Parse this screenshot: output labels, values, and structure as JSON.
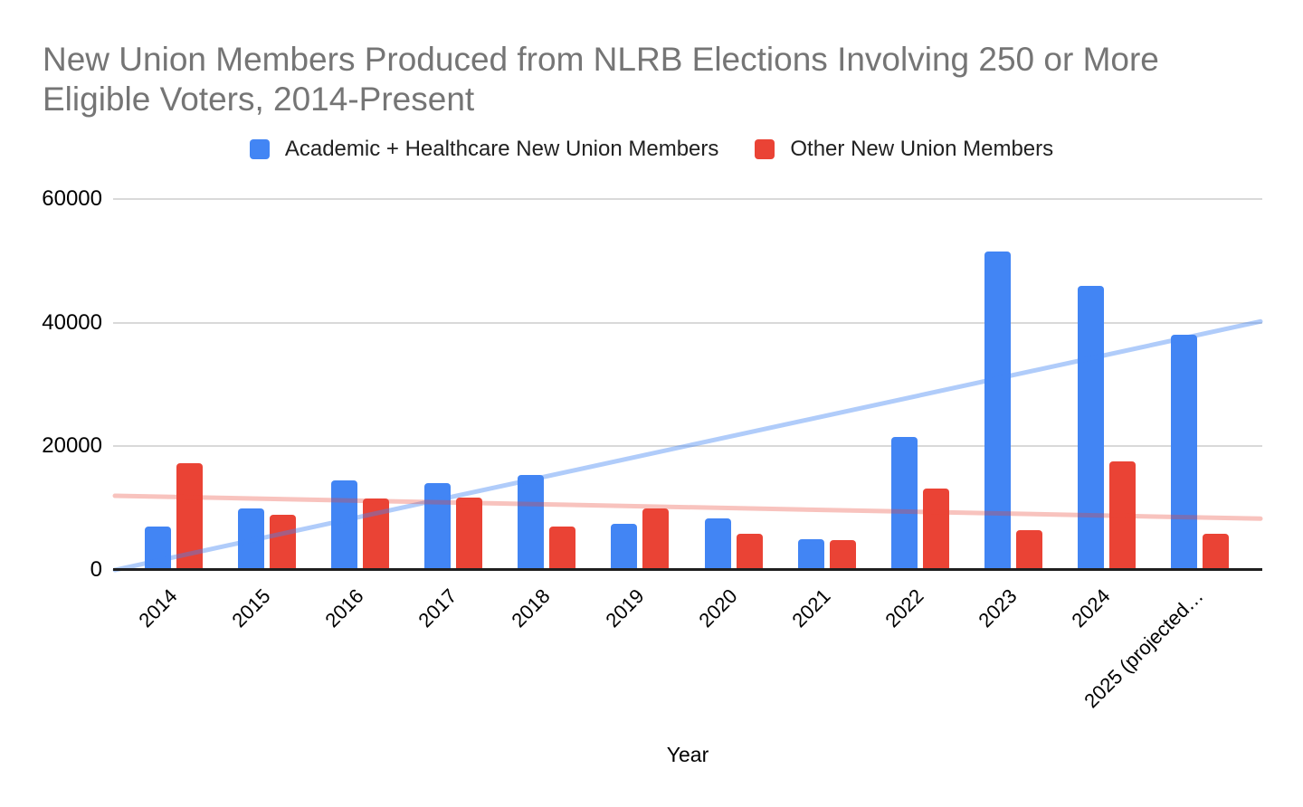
{
  "colors": {
    "background": "#ffffff",
    "title_text": "#757575",
    "axis_line": "#1f1f1f",
    "gridline": "#d9d9d9",
    "tick_text": "#000000",
    "series_academic": "#4285F4",
    "series_other": "#EA4335"
  },
  "chart_data": {
    "type": "bar",
    "title": "New Union Members Produced from NLRB Elections Involving 250 or More Eligible Voters, 2014-Present",
    "xlabel": "Year",
    "ylabel": "",
    "ylim": [
      0,
      60000
    ],
    "yticks": [
      0,
      20000,
      40000,
      60000
    ],
    "grid": true,
    "legend_position": "top",
    "categories": [
      "2014",
      "2015",
      "2016",
      "2017",
      "2018",
      "2019",
      "2020",
      "2021",
      "2022",
      "2023",
      "2024",
      "2025 (projected…"
    ],
    "series": [
      {
        "name": "Academic + Healthcare New Union Members",
        "color": "#4285F4",
        "values": [
          7000,
          10000,
          14500,
          14000,
          15400,
          7400,
          8400,
          5000,
          21500,
          51500,
          46000,
          38000
        ]
      },
      {
        "name": "Other New Union Members",
        "color": "#EA4335",
        "values": [
          17200,
          8900,
          11600,
          11700,
          7000,
          10000,
          5900,
          4800,
          13100,
          6400,
          17500,
          5900
        ]
      }
    ],
    "trendlines": [
      {
        "series": "Academic + Healthcare New Union Members",
        "color": "#4285F4",
        "opacity": 0.42,
        "start_value": 0,
        "end_value": 40200
      },
      {
        "series": "Other New Union Members",
        "color": "#EA4335",
        "opacity": 0.32,
        "start_value": 12000,
        "end_value": 8300
      }
    ]
  }
}
